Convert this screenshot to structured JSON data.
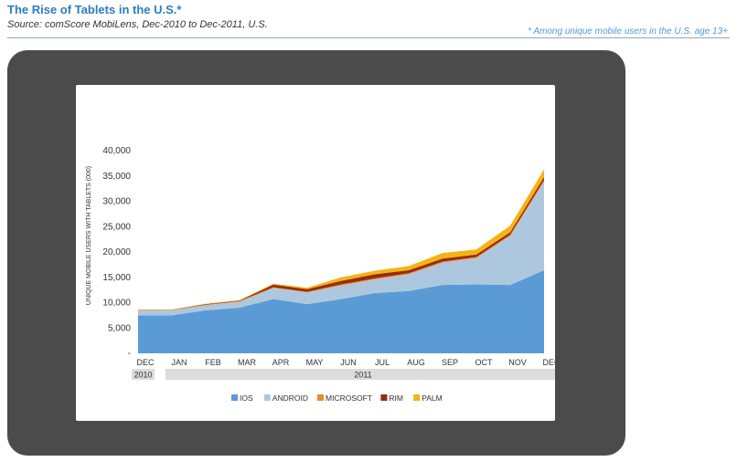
{
  "header": {
    "title": "The Rise of Tablets in the U.S.*",
    "source": "Source: comScore MobiLens, Dec-2010 to Dec-2011, U.S.",
    "note": "* Among unique mobile users in the U.S. age 13+"
  },
  "colors": {
    "IOS": "#5b9bd5",
    "ANDROID": "#adc8de",
    "MICROSOFT": "#e98a2b",
    "RIM": "#9b2b0a",
    "PALM": "#f5b316"
  },
  "chart_data": {
    "type": "area",
    "stacked": true,
    "ylabel": "UNIQUE MOBILE USERS WITH TABLETS (000)",
    "ylim": [
      0,
      40000
    ],
    "yticks": [
      {
        "value": 0,
        "label": "-"
      },
      {
        "value": 5000,
        "label": "5,000"
      },
      {
        "value": 10000,
        "label": "10,000"
      },
      {
        "value": 15000,
        "label": "15,000"
      },
      {
        "value": 20000,
        "label": "20,000"
      },
      {
        "value": 25000,
        "label": "25,000"
      },
      {
        "value": 30000,
        "label": "30,000"
      },
      {
        "value": 35000,
        "label": "35,000"
      },
      {
        "value": 40000,
        "label": "40,000"
      }
    ],
    "categories": [
      "DEC",
      "JAN",
      "FEB",
      "MAR",
      "APR",
      "MAY",
      "JUN",
      "JUL",
      "AUG",
      "SEP",
      "OCT",
      "NOV",
      "DEC"
    ],
    "year_groups": [
      {
        "label": "2010",
        "start": 0,
        "end": 0
      },
      {
        "label": "2011",
        "start": 1,
        "end": 12
      }
    ],
    "series": [
      {
        "name": "IOS",
        "values": [
          7500,
          7500,
          8500,
          9000,
          10700,
          9700,
          10700,
          11900,
          12300,
          13500,
          13600,
          13500,
          16400
        ]
      },
      {
        "name": "ANDROID",
        "values": [
          1000,
          1000,
          1000,
          1200,
          2200,
          2300,
          2700,
          2700,
          3300,
          4400,
          5200,
          9700,
          17500
        ]
      },
      {
        "name": "MICROSOFT",
        "values": [
          50,
          50,
          100,
          100,
          150,
          150,
          200,
          200,
          200,
          200,
          200,
          200,
          300
        ]
      },
      {
        "name": "RIM",
        "values": [
          50,
          50,
          100,
          100,
          500,
          500,
          700,
          800,
          600,
          600,
          500,
          500,
          600
        ]
      },
      {
        "name": "PALM",
        "values": [
          50,
          50,
          100,
          100,
          200,
          300,
          700,
          700,
          800,
          1100,
          1000,
          1300,
          1500
        ]
      }
    ]
  }
}
